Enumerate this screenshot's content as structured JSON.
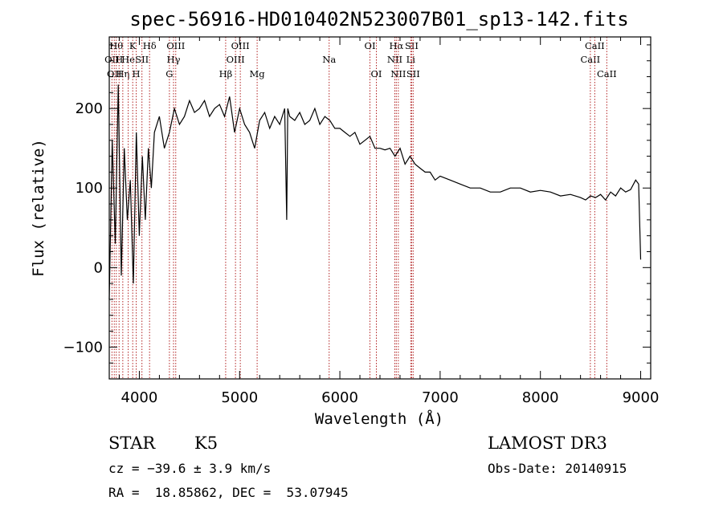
{
  "chart_data": {
    "type": "line",
    "title": "spec-56916-HD010402N523007B01_sp13-142.fits",
    "xlabel": "Wavelength (Å)",
    "ylabel": "Flux (relative)",
    "xlim": [
      3700,
      9100
    ],
    "ylim": [
      -140,
      290
    ],
    "xticks": [
      4000,
      5000,
      6000,
      7000,
      8000,
      9000
    ],
    "yticks": [
      -100,
      0,
      100,
      200
    ],
    "line_color": "#000000",
    "marker_color": "#b22222",
    "series": [
      {
        "name": "spectrum",
        "x": [
          3700,
          3730,
          3760,
          3790,
          3820,
          3850,
          3880,
          3910,
          3940,
          3970,
          4000,
          4030,
          4060,
          4090,
          4120,
          4150,
          4200,
          4250,
          4300,
          4350,
          4400,
          4450,
          4500,
          4550,
          4600,
          4650,
          4700,
          4750,
          4800,
          4850,
          4900,
          4950,
          5000,
          5050,
          5100,
          5150,
          5200,
          5250,
          5300,
          5350,
          5400,
          5450,
          5470,
          5480,
          5500,
          5550,
          5600,
          5650,
          5700,
          5750,
          5800,
          5850,
          5900,
          5950,
          6000,
          6050,
          6100,
          6150,
          6200,
          6250,
          6300,
          6350,
          6400,
          6450,
          6500,
          6550,
          6600,
          6650,
          6700,
          6750,
          6800,
          6850,
          6900,
          6950,
          7000,
          7100,
          7200,
          7300,
          7400,
          7500,
          7600,
          7700,
          7800,
          7900,
          8000,
          8100,
          8200,
          8300,
          8400,
          8450,
          8500,
          8550,
          8600,
          8650,
          8700,
          8750,
          8800,
          8850,
          8900,
          8950,
          8980,
          9000
        ],
        "y": [
          -40,
          160,
          30,
          230,
          -10,
          150,
          60,
          110,
          -20,
          170,
          40,
          140,
          60,
          150,
          100,
          170,
          190,
          150,
          170,
          200,
          180,
          190,
          210,
          195,
          200,
          210,
          190,
          200,
          205,
          190,
          215,
          170,
          200,
          180,
          170,
          150,
          185,
          195,
          175,
          190,
          180,
          200,
          60,
          200,
          190,
          185,
          195,
          180,
          185,
          200,
          180,
          190,
          185,
          175,
          175,
          170,
          165,
          170,
          155,
          160,
          165,
          150,
          150,
          148,
          150,
          140,
          150,
          130,
          140,
          130,
          125,
          120,
          120,
          110,
          115,
          110,
          105,
          100,
          100,
          95,
          95,
          100,
          100,
          95,
          97,
          95,
          90,
          92,
          88,
          85,
          90,
          88,
          92,
          85,
          95,
          90,
          100,
          95,
          98,
          110,
          105,
          10
        ]
      }
    ],
    "lines": [
      {
        "wl": 3727,
        "label": "OII",
        "row": 2
      },
      {
        "wl": 3750,
        "label": "OII",
        "row": 3
      },
      {
        "wl": 3770,
        "label": "Hθ",
        "row": 1
      },
      {
        "wl": 3798,
        "label": "H",
        "row": 2
      },
      {
        "wl": 3835,
        "label": "Hη",
        "row": 3
      },
      {
        "wl": 3889,
        "label": "He",
        "row": 2
      },
      {
        "wl": 3934,
        "label": "K",
        "row": 1
      },
      {
        "wl": 3969,
        "label": "H",
        "row": 3
      },
      {
        "wl": 4026,
        "label": "SII",
        "row": 2
      },
      {
        "wl": 4102,
        "label": "Hδ",
        "row": 1
      },
      {
        "wl": 4300,
        "label": "G",
        "row": 3
      },
      {
        "wl": 4341,
        "label": "Hγ",
        "row": 2
      },
      {
        "wl": 4363,
        "label": "OIII",
        "row": 1
      },
      {
        "wl": 4861,
        "label": "Hβ",
        "row": 3
      },
      {
        "wl": 4959,
        "label": "OIII",
        "row": 2
      },
      {
        "wl": 5007,
        "label": "OIII",
        "row": 1
      },
      {
        "wl": 5175,
        "label": "Mg",
        "row": 3
      },
      {
        "wl": 5893,
        "label": "Na",
        "row": 2
      },
      {
        "wl": 6300,
        "label": "OI",
        "row": 1
      },
      {
        "wl": 6364,
        "label": "OI",
        "row": 3
      },
      {
        "wl": 6548,
        "label": "NII",
        "row": 2
      },
      {
        "wl": 6563,
        "label": "Hα",
        "row": 1
      },
      {
        "wl": 6583,
        "label": "NII",
        "row": 3
      },
      {
        "wl": 6707,
        "label": "Li",
        "row": 2
      },
      {
        "wl": 6716,
        "label": "SII",
        "row": 1
      },
      {
        "wl": 6731,
        "label": "SII",
        "row": 3
      },
      {
        "wl": 8498,
        "label": "CaII",
        "row": 2
      },
      {
        "wl": 8542,
        "label": "CaII",
        "row": 1
      },
      {
        "wl": 8662,
        "label": "CaII",
        "row": 3
      }
    ]
  },
  "info": {
    "class": "STAR",
    "subclass": "K5",
    "survey": "LAMOST DR3",
    "cz": "cz = −39.6 ± 3.9 km/s",
    "obs_date": "Obs-Date: 20140915",
    "coords": "RA =  18.85862, DEC =  53.07945"
  }
}
